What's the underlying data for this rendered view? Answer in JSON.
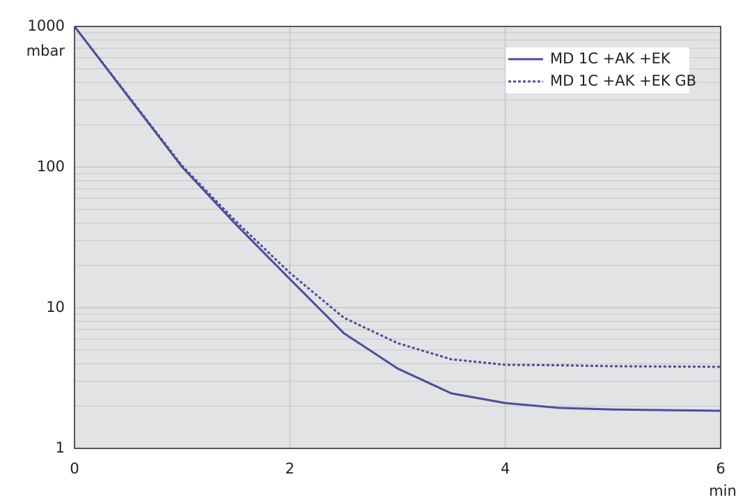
{
  "chart_data": {
    "type": "line",
    "y_label": "mbar",
    "x_label": "min",
    "x": [
      0,
      0.5,
      1,
      1.5,
      2,
      2.5,
      3,
      3.5,
      4,
      4.5,
      5,
      5.5,
      6
    ],
    "series": [
      {
        "name": "MD 1C +AK +EK",
        "color": "#4f4b9b",
        "style": "solid",
        "values": [
          1000,
          316,
          100,
          39,
          16,
          6.6,
          3.7,
          2.46,
          2.1,
          1.94,
          1.89,
          1.87,
          1.85
        ]
      },
      {
        "name": "MD 1C +AK +EK GB",
        "color": "#4f4b9b",
        "style": "dotted",
        "values": [
          1000,
          320,
          102,
          41,
          17.7,
          8.5,
          5.6,
          4.3,
          3.93,
          3.9,
          3.84,
          3.82,
          3.8
        ]
      }
    ],
    "xlim": [
      0,
      6
    ],
    "xticks": [
      0,
      2,
      4,
      6
    ],
    "ylim": [
      1,
      1000
    ],
    "yticks": [
      1,
      10,
      100,
      1000
    ],
    "log_y": true,
    "grid": true,
    "legend": "upper right"
  }
}
